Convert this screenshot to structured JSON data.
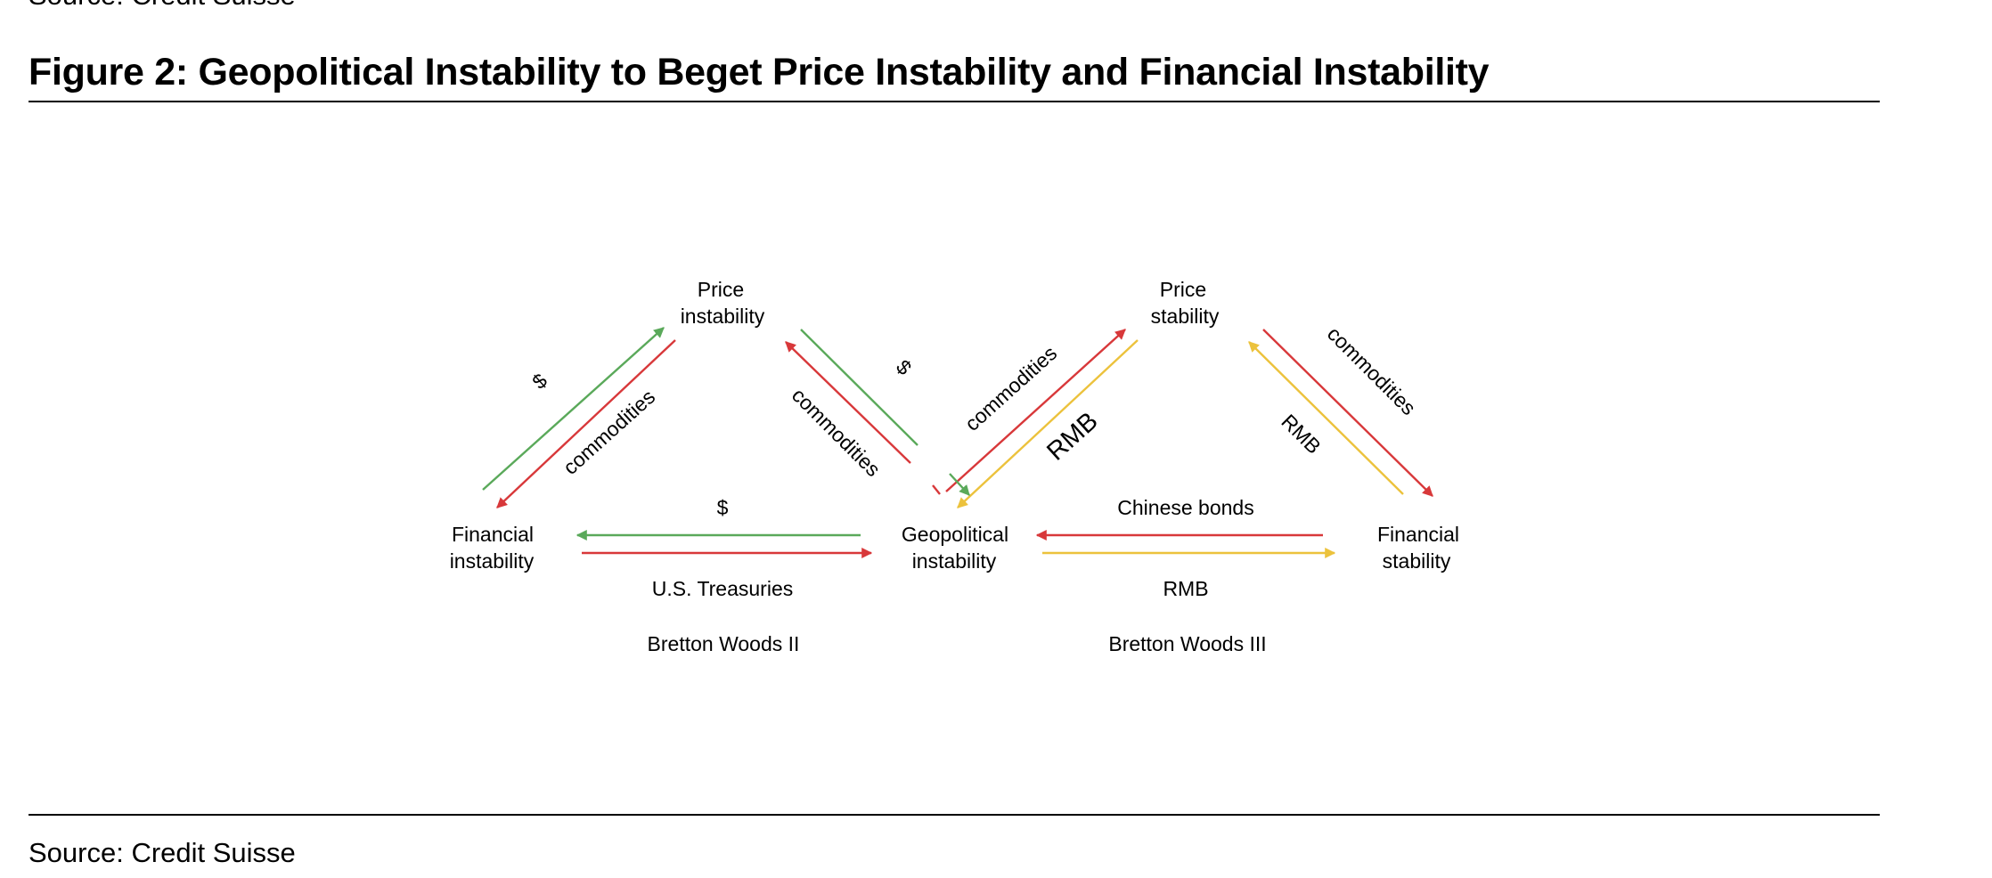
{
  "top_source": "Source: Credit Suisse",
  "title": "Figure 2: Geopolitical Instability to Beget Price Instability and Financial Instability",
  "source": "Source: Credit Suisse",
  "colors": {
    "green": "#5aa95a",
    "red": "#d8383a",
    "yellow": "#ecc23c"
  },
  "nodes": {
    "price_instability": [
      "Price",
      "instability"
    ],
    "price_stability": [
      "Price",
      "stability"
    ],
    "financial_instability": [
      "Financial",
      "instability"
    ],
    "geopolitical_instability": [
      "Geopolitical",
      "instability"
    ],
    "financial_stability": [
      "Financial",
      "stability"
    ]
  },
  "flows": {
    "left_up_green": "$",
    "left_down_red": "commodities",
    "mid_left_green": "$",
    "mid_left_red": "commodities",
    "bottom_left_green": "$",
    "bottom_left_red": "U.S. Treasuries",
    "mid_right_red": "commodities",
    "mid_right_yellow": "RMB",
    "right_down_red": "commodities",
    "right_up_yellow": "RMB",
    "bottom_right_red": "Chinese bonds",
    "bottom_right_yellow": "RMB"
  },
  "systems": {
    "left": "Bretton Woods II",
    "right": "Bretton Woods III"
  }
}
